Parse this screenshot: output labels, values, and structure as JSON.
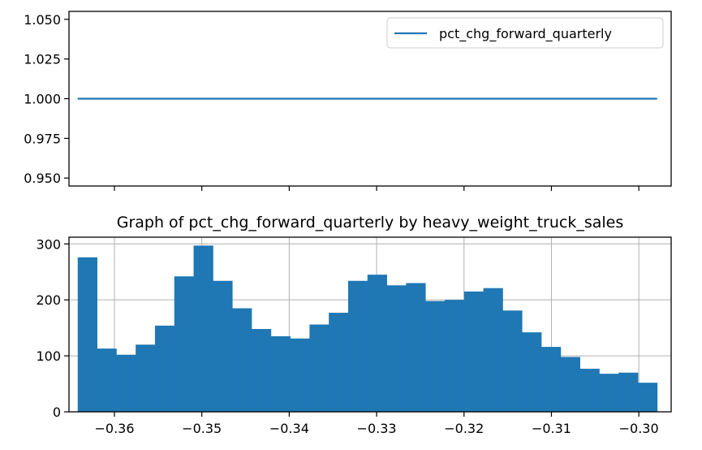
{
  "chart_data": [
    {
      "type": "line",
      "title": "",
      "xlabel": "",
      "ylabel": "",
      "ylim": [
        0.945,
        1.055
      ],
      "y_ticks": [
        0.95,
        0.975,
        1.0,
        1.025,
        1.05
      ],
      "y_tick_labels": [
        "0.950",
        "0.975",
        "1.000",
        "1.025",
        "1.050"
      ],
      "x_ticks_shared": true,
      "legend": {
        "placement": "upper right",
        "entries": [
          "pct_chg_forward_quarterly"
        ]
      },
      "series": [
        {
          "name": "pct_chg_forward_quarterly",
          "x": [
            -0.3642,
            -0.2979
          ],
          "y": [
            1.0,
            1.0
          ],
          "color": "#1f77b4"
        }
      ],
      "grid": false
    },
    {
      "type": "bar",
      "subtype": "histogram",
      "title": "Graph of pct_chg_forward_quarterly by heavy_weight_truck_sales",
      "xlabel": "",
      "ylabel": "",
      "xlim": [
        -0.3652,
        -0.2963
      ],
      "ylim": [
        0,
        312
      ],
      "x_ticks": [
        -0.36,
        -0.35,
        -0.34,
        -0.33,
        -0.32,
        -0.31,
        -0.3
      ],
      "x_tick_labels": [
        "−0.36",
        "−0.35",
        "−0.34",
        "−0.33",
        "−0.32",
        "−0.31",
        "−0.30"
      ],
      "y_ticks": [
        0,
        100,
        200,
        300
      ],
      "y_tick_labels": [
        "0",
        "100",
        "200",
        "300"
      ],
      "bin_start": -0.3642,
      "bin_width": 0.00221,
      "values": [
        276,
        113,
        102,
        120,
        154,
        242,
        297,
        234,
        185,
        148,
        135,
        131,
        156,
        177,
        234,
        245,
        226,
        230,
        198,
        200,
        215,
        221,
        181,
        142,
        116,
        98,
        77,
        68,
        70,
        52
      ],
      "color": "#1f77b4",
      "grid": true
    }
  ]
}
